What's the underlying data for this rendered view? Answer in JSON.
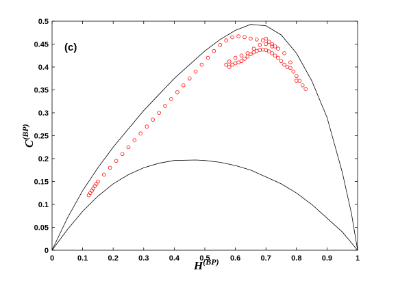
{
  "chart_data": {
    "type": "scatter",
    "panel_label": "(c)",
    "xlabel": {
      "main": "H",
      "sup": "(BP)"
    },
    "ylabel": {
      "main": "C",
      "sup": "(BP)"
    },
    "xlim": [
      0,
      1
    ],
    "ylim": [
      0,
      0.5
    ],
    "xticks": [
      "0",
      "0.1",
      "0.2",
      "0.3",
      "0.4",
      "0.5",
      "0.6",
      "0.7",
      "0.8",
      "0.9",
      "1"
    ],
    "yticks": [
      "0",
      "0.05",
      "0.1",
      "0.15",
      "0.2",
      "0.25",
      "0.3",
      "0.35",
      "0.4",
      "0.45",
      "0.5"
    ],
    "grid": false,
    "marker_color": "#ff0000",
    "bound_color": "#000000",
    "upper_bound": [
      [
        0,
        0
      ],
      [
        0.05,
        0.07
      ],
      [
        0.1,
        0.13
      ],
      [
        0.15,
        0.18
      ],
      [
        0.2,
        0.225
      ],
      [
        0.25,
        0.265
      ],
      [
        0.3,
        0.305
      ],
      [
        0.35,
        0.34
      ],
      [
        0.4,
        0.375
      ],
      [
        0.45,
        0.405
      ],
      [
        0.5,
        0.435
      ],
      [
        0.55,
        0.46
      ],
      [
        0.6,
        0.48
      ],
      [
        0.65,
        0.493
      ],
      [
        0.7,
        0.49
      ],
      [
        0.75,
        0.47
      ],
      [
        0.8,
        0.43
      ],
      [
        0.85,
        0.37
      ],
      [
        0.9,
        0.29
      ],
      [
        0.95,
        0.17
      ],
      [
        0.98,
        0.08
      ],
      [
        1,
        0
      ]
    ],
    "lower_bound": [
      [
        0,
        0
      ],
      [
        0.05,
        0.045
      ],
      [
        0.1,
        0.085
      ],
      [
        0.15,
        0.118
      ],
      [
        0.2,
        0.145
      ],
      [
        0.25,
        0.165
      ],
      [
        0.3,
        0.18
      ],
      [
        0.35,
        0.19
      ],
      [
        0.4,
        0.196
      ],
      [
        0.47,
        0.197
      ],
      [
        0.5,
        0.196
      ],
      [
        0.55,
        0.192
      ],
      [
        0.6,
        0.185
      ],
      [
        0.65,
        0.175
      ],
      [
        0.7,
        0.16
      ],
      [
        0.75,
        0.145
      ],
      [
        0.8,
        0.125
      ],
      [
        0.85,
        0.1
      ],
      [
        0.9,
        0.07
      ],
      [
        0.95,
        0.04
      ],
      [
        1,
        0
      ]
    ],
    "series": [
      {
        "points": [
          [
            0.12,
            0.12
          ],
          [
            0.125,
            0.125
          ],
          [
            0.13,
            0.13
          ],
          [
            0.135,
            0.135
          ],
          [
            0.14,
            0.14
          ],
          [
            0.145,
            0.145
          ],
          [
            0.15,
            0.15
          ],
          [
            0.17,
            0.165
          ],
          [
            0.19,
            0.18
          ],
          [
            0.21,
            0.195
          ],
          [
            0.23,
            0.21
          ],
          [
            0.25,
            0.225
          ],
          [
            0.27,
            0.24
          ],
          [
            0.29,
            0.255
          ],
          [
            0.31,
            0.27
          ],
          [
            0.33,
            0.285
          ],
          [
            0.35,
            0.3
          ],
          [
            0.37,
            0.315
          ],
          [
            0.39,
            0.33
          ],
          [
            0.41,
            0.345
          ],
          [
            0.43,
            0.36
          ],
          [
            0.45,
            0.375
          ],
          [
            0.47,
            0.39
          ],
          [
            0.49,
            0.405
          ],
          [
            0.51,
            0.42
          ],
          [
            0.53,
            0.435
          ],
          [
            0.55,
            0.448
          ],
          [
            0.57,
            0.458
          ],
          [
            0.59,
            0.465
          ],
          [
            0.61,
            0.467
          ],
          [
            0.63,
            0.465
          ],
          [
            0.65,
            0.462
          ],
          [
            0.67,
            0.46
          ],
          [
            0.69,
            0.458
          ],
          [
            0.7,
            0.462
          ],
          [
            0.71,
            0.455
          ],
          [
            0.72,
            0.45
          ],
          [
            0.73,
            0.445
          ],
          [
            0.58,
            0.4
          ],
          [
            0.59,
            0.405
          ],
          [
            0.6,
            0.408
          ],
          [
            0.61,
            0.41
          ],
          [
            0.62,
            0.413
          ],
          [
            0.63,
            0.418
          ],
          [
            0.64,
            0.423
          ],
          [
            0.65,
            0.428
          ],
          [
            0.66,
            0.432
          ],
          [
            0.67,
            0.435
          ],
          [
            0.68,
            0.437
          ],
          [
            0.69,
            0.438
          ],
          [
            0.7,
            0.437
          ],
          [
            0.71,
            0.434
          ],
          [
            0.72,
            0.43
          ],
          [
            0.73,
            0.425
          ],
          [
            0.74,
            0.42
          ],
          [
            0.75,
            0.413
          ],
          [
            0.76,
            0.405
          ],
          [
            0.77,
            0.4
          ],
          [
            0.78,
            0.398
          ],
          [
            0.79,
            0.39
          ],
          [
            0.8,
            0.38
          ],
          [
            0.81,
            0.37
          ],
          [
            0.82,
            0.36
          ],
          [
            0.83,
            0.352
          ],
          [
            0.57,
            0.405
          ],
          [
            0.58,
            0.412
          ],
          [
            0.6,
            0.42
          ],
          [
            0.62,
            0.425
          ],
          [
            0.64,
            0.43
          ],
          [
            0.66,
            0.44
          ],
          [
            0.68,
            0.448
          ],
          [
            0.7,
            0.45
          ],
          [
            0.72,
            0.445
          ],
          [
            0.74,
            0.44
          ],
          [
            0.76,
            0.43
          ],
          [
            0.78,
            0.41
          ],
          [
            0.8,
            0.37
          ]
        ]
      }
    ]
  }
}
